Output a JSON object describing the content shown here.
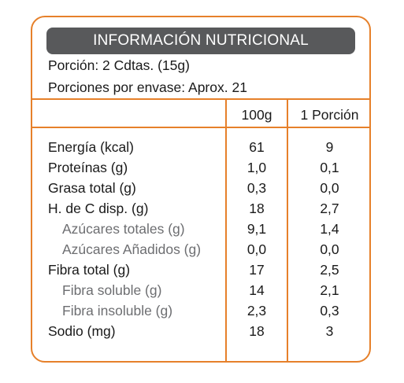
{
  "title": "INFORMACIÓN NUTRICIONAL",
  "serving_size": "Porción: 2 Cdtas. (15g)",
  "servings_per_container": "Porciones por envase: Aprox. 21",
  "columns": [
    "100g",
    "1 Porción"
  ],
  "rows": [
    {
      "label": "Energía (kcal)",
      "per100": "61",
      "perServing": "9",
      "sub": false
    },
    {
      "label": "Proteínas (g)",
      "per100": "1,0",
      "perServing": "0,1",
      "sub": false
    },
    {
      "label": "Grasa total (g)",
      "per100": "0,3",
      "perServing": "0,0",
      "sub": false
    },
    {
      "label": "H. de C disp. (g)",
      "per100": "18",
      "perServing": "2,7",
      "sub": false
    },
    {
      "label": "Azúcares totales (g)",
      "per100": "9,1",
      "perServing": "1,4",
      "sub": true
    },
    {
      "label": "Azúcares Añadidos (g)",
      "per100": "0,0",
      "perServing": "0,0",
      "sub": true
    },
    {
      "label": "Fibra total (g)",
      "per100": "17",
      "perServing": "2,5",
      "sub": false
    },
    {
      "label": "Fibra soluble (g)",
      "per100": "14",
      "perServing": "2,1",
      "sub": true
    },
    {
      "label": "Fibra insoluble (g)",
      "per100": "2,3",
      "perServing": "0,3",
      "sub": true
    },
    {
      "label": "Sodio (mg)",
      "per100": "18",
      "perServing": "3",
      "sub": false
    }
  ],
  "colors": {
    "border": "#e6802a",
    "title_bg": "#58595b",
    "sub_text": "#6d6e71"
  }
}
